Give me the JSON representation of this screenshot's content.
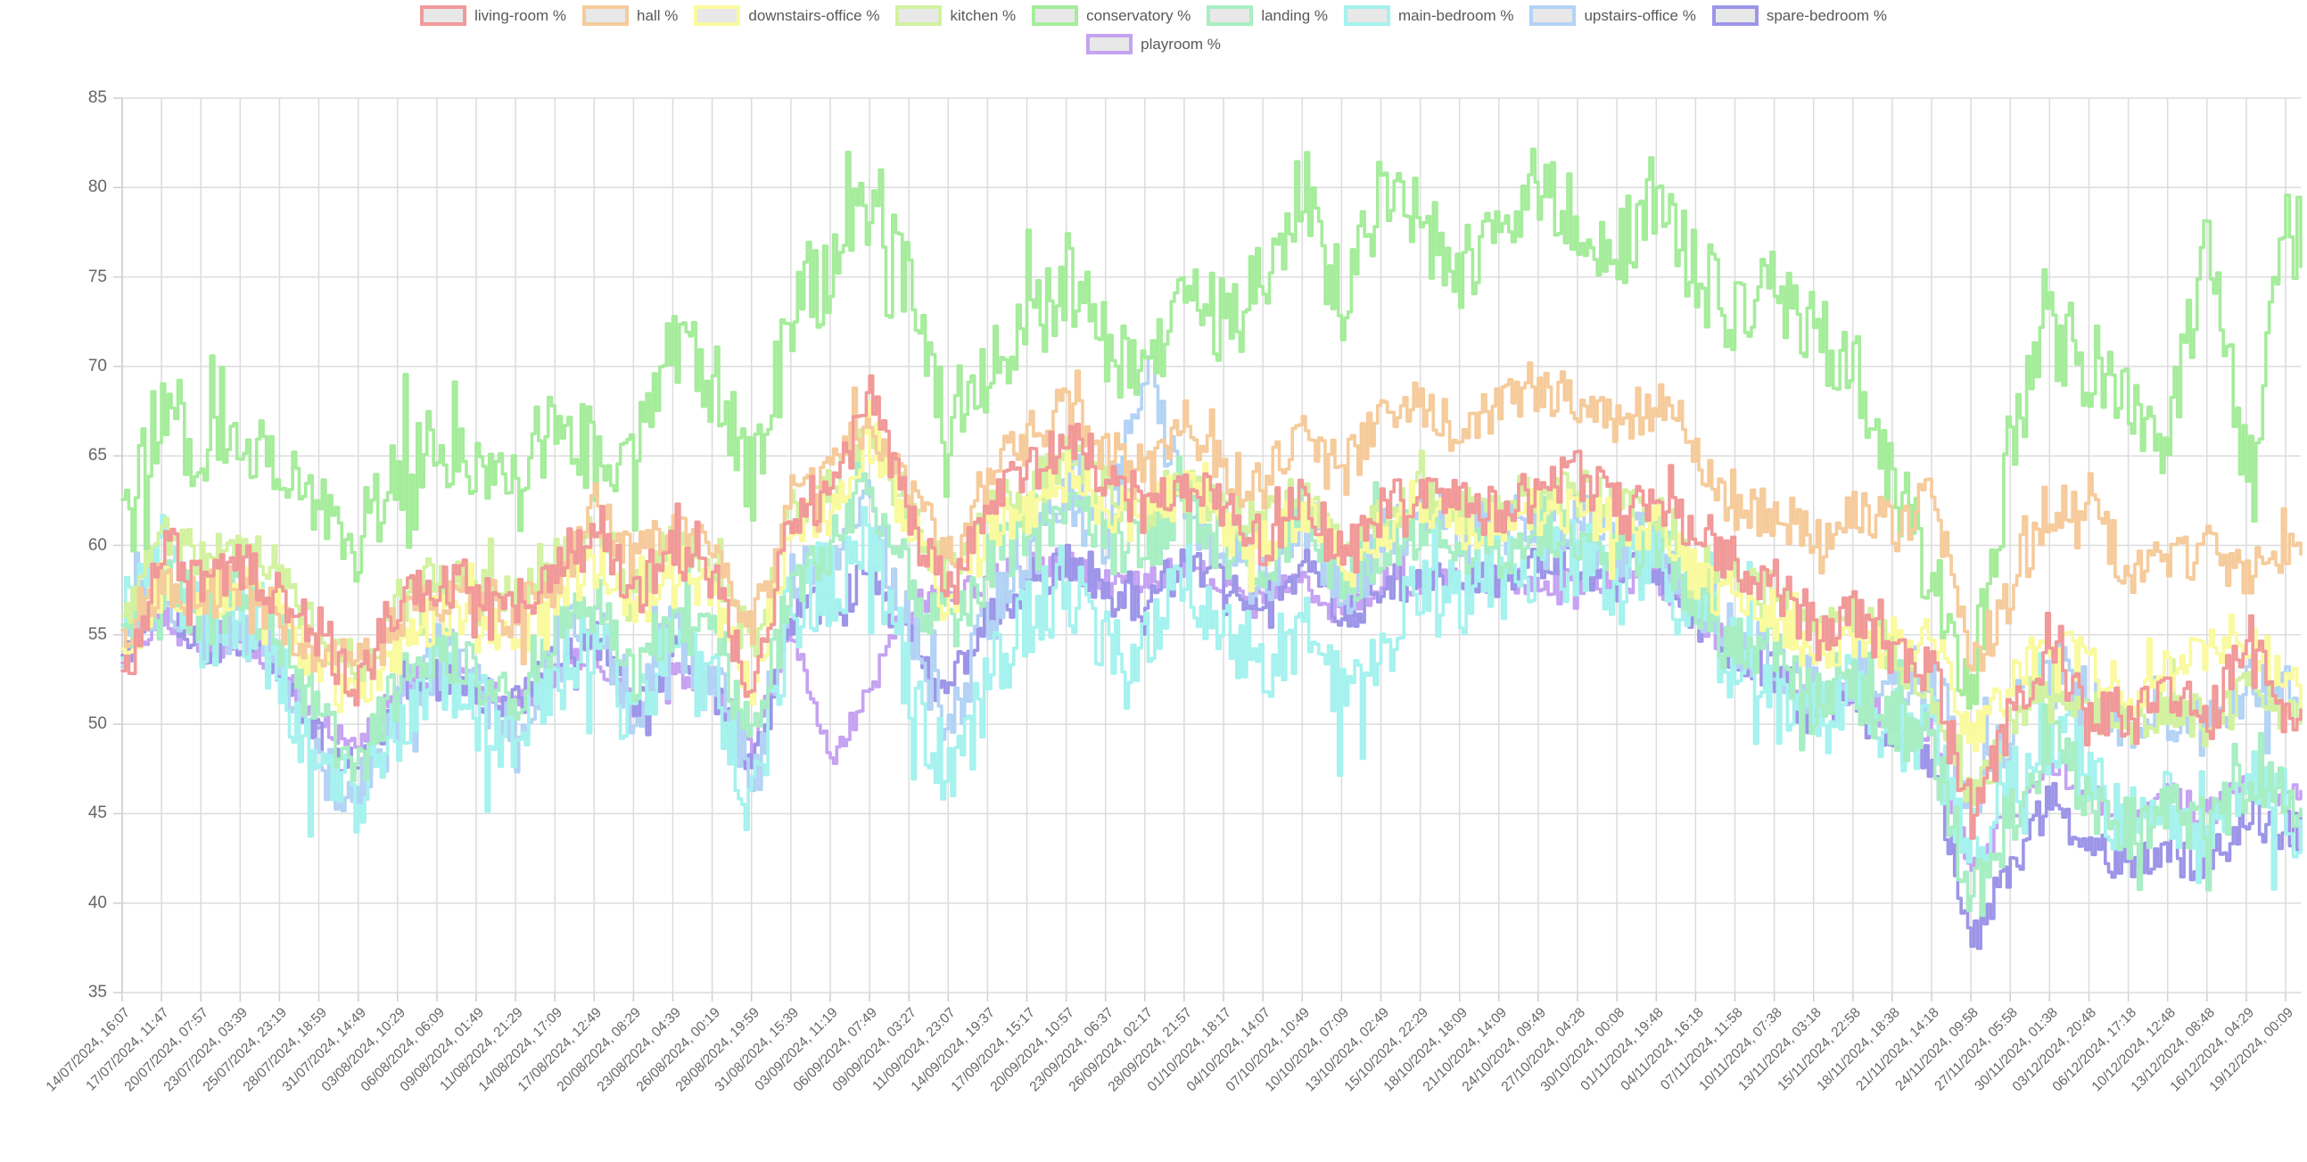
{
  "chart_data": {
    "type": "line",
    "title": "",
    "xlabel": "",
    "ylabel": "",
    "legend_position": "top",
    "grid": true,
    "grid_color": "#dcdcdc",
    "axis_color": "#cfcfcf",
    "tick_label_color": "#666666",
    "legend_text_color": "#595959",
    "legend_swatch_fill": "#e8e8e8",
    "y_min": 35,
    "y_max": 85,
    "y_ticks": [
      35,
      40,
      45,
      50,
      55,
      60,
      65,
      70,
      75,
      80,
      85
    ],
    "x_labels": [
      "14/07/2024, 16:07",
      "17/07/2024, 11:47",
      "20/07/2024, 07:57",
      "23/07/2024, 03:39",
      "25/07/2024, 23:19",
      "28/07/2024, 18:59",
      "31/07/2024, 14:49",
      "03/08/2024, 10:29",
      "06/08/2024, 06:09",
      "09/08/2024, 01:49",
      "11/08/2024, 21:29",
      "14/08/2024, 17:09",
      "17/08/2024, 12:49",
      "20/08/2024, 08:29",
      "23/08/2024, 04:39",
      "26/08/2024, 00:19",
      "28/08/2024, 19:59",
      "31/08/2024, 15:39",
      "03/09/2024, 11:19",
      "06/09/2024, 07:49",
      "09/09/2024, 03:27",
      "11/09/2024, 23:07",
      "14/09/2024, 19:37",
      "17/09/2024, 15:17",
      "20/09/2024, 10:57",
      "23/09/2024, 06:37",
      "26/09/2024, 02:17",
      "28/09/2024, 21:57",
      "01/10/2024, 18:17",
      "04/10/2024, 14:07",
      "07/10/2024, 10:49",
      "10/10/2024, 07:09",
      "13/10/2024, 02:49",
      "15/10/2024, 22:29",
      "18/10/2024, 18:09",
      "21/10/2024, 14:09",
      "24/10/2024, 09:49",
      "27/10/2024, 04:28",
      "30/10/2024, 00:08",
      "01/11/2024, 19:48",
      "04/11/2024, 16:18",
      "07/11/2024, 11:58",
      "10/11/2024, 07:38",
      "13/11/2024, 03:18",
      "15/11/2024, 22:58",
      "18/11/2024, 18:38",
      "21/11/2024, 14:18",
      "24/11/2024, 09:58",
      "27/11/2024, 05:58",
      "30/11/2024, 01:38",
      "03/12/2024, 20:48",
      "06/12/2024, 17:18",
      "10/12/2024, 12:48",
      "13/12/2024, 08:48",
      "16/12/2024, 04:29",
      "19/12/2024, 00:09"
    ],
    "series": [
      {
        "name": "living-room %",
        "color": "#f19999",
        "jitter": 1.5,
        "values": [
          52,
          60,
          58,
          59,
          57,
          55,
          52,
          57,
          58,
          58,
          56,
          59,
          61,
          57,
          60,
          58,
          52,
          62,
          63,
          68,
          62,
          57,
          62,
          64,
          66,
          64,
          62,
          63,
          62,
          60,
          63,
          59,
          62,
          63,
          62,
          62,
          63,
          64,
          62,
          63,
          60,
          59,
          58,
          55,
          56,
          54,
          53,
          45,
          50,
          54,
          50,
          51,
          52,
          50,
          55,
          50
        ]
      },
      {
        "name": "hall %",
        "color": "#f6cb9b",
        "jitter": 1.5,
        "values": [
          55,
          58,
          57,
          58,
          56,
          54,
          53,
          56,
          57,
          57,
          56,
          58,
          62,
          59,
          61,
          60,
          55,
          63,
          64,
          67,
          63,
          59,
          64,
          66,
          68,
          65,
          64,
          66,
          64,
          63,
          67,
          64,
          67,
          68,
          66,
          68,
          69,
          68,
          67,
          68,
          65,
          62,
          62,
          60,
          62,
          61,
          63,
          53,
          57,
          62,
          63,
          58,
          59,
          60,
          58,
          60
        ]
      },
      {
        "name": "downstairs-office %",
        "color": "#fafa9e",
        "jitter": 1.4,
        "values": [
          54,
          58,
          57,
          58,
          56,
          53,
          51,
          55,
          56,
          56,
          55,
          57,
          59,
          56,
          59,
          57,
          52,
          61,
          62,
          66,
          61,
          57,
          61,
          62,
          64,
          62,
          62,
          63,
          61,
          60,
          62,
          59,
          61,
          62,
          61,
          61,
          62,
          62,
          61,
          61,
          58,
          57,
          56,
          54,
          55,
          54,
          55,
          49,
          52,
          55,
          53,
          52,
          53,
          54,
          55,
          52
        ]
      },
      {
        "name": "kitchen %",
        "color": "#d2f2a0",
        "jitter": 1.4,
        "values": [
          56,
          61,
          59,
          60,
          58,
          55,
          53,
          57,
          58,
          58,
          57,
          59,
          61,
          58,
          60,
          59,
          54,
          62,
          63,
          66,
          62,
          58,
          62,
          63,
          65,
          63,
          62,
          63,
          62,
          61,
          63,
          60,
          62,
          63,
          62,
          62,
          63,
          63,
          62,
          62,
          59,
          58,
          57,
          55,
          56,
          54,
          52,
          46,
          50,
          53,
          51,
          50,
          51,
          50,
          52,
          51
        ]
      },
      {
        "name": "conservatory %",
        "color": "#a5ec9b",
        "jitter": 2.6,
        "values": [
          62,
          68,
          65,
          66,
          64,
          62,
          60,
          64,
          66,
          64,
          63,
          68,
          65,
          66,
          71,
          69,
          63,
          73,
          75,
          80,
          74,
          67,
          70,
          72,
          75,
          71,
          69,
          76,
          72,
          75,
          80,
          73,
          80,
          78,
          75,
          79,
          80,
          78,
          76,
          80,
          75,
          73,
          74,
          72,
          70,
          64,
          58,
          52,
          66,
          72,
          70,
          68,
          66,
          78,
          64,
          77
        ]
      },
      {
        "name": "landing %",
        "color": "#a7eec3",
        "jitter": 1.8,
        "values": [
          55,
          58,
          56,
          57,
          55,
          50,
          48,
          52,
          54,
          53,
          52,
          55,
          57,
          53,
          56,
          55,
          49,
          58,
          60,
          63,
          58,
          55,
          59,
          61,
          62,
          60,
          60,
          62,
          60,
          59,
          61,
          58,
          60,
          61,
          60,
          60,
          61,
          61,
          60,
          60,
          57,
          55,
          54,
          51,
          52,
          50,
          49,
          40,
          45,
          49,
          46,
          44,
          45,
          44,
          47,
          46
        ]
      },
      {
        "name": "main-bedroom %",
        "color": "#a5f2ee",
        "jitter": 2.5,
        "values": [
          56,
          60,
          55,
          56,
          53,
          47,
          46,
          50,
          53,
          51,
          49,
          53,
          55,
          50,
          54,
          52,
          45,
          57,
          58,
          60,
          52,
          47,
          52,
          56,
          58,
          54,
          55,
          58,
          55,
          53,
          56,
          51,
          55,
          57,
          57,
          58,
          59,
          59,
          58,
          59,
          56,
          54,
          53,
          50,
          52,
          50,
          49,
          43,
          46,
          50,
          47,
          44,
          45,
          43,
          47,
          45
        ]
      },
      {
        "name": "upstairs-office %",
        "color": "#b3d3f5",
        "jitter": 2.0,
        "values": [
          55,
          58,
          55,
          56,
          53,
          48,
          46,
          51,
          54,
          52,
          50,
          54,
          56,
          51,
          55,
          53,
          46,
          58,
          59,
          62,
          55,
          50,
          56,
          60,
          63,
          60,
          70,
          62,
          60,
          58,
          62,
          57,
          60,
          62,
          61,
          61,
          62,
          61,
          60,
          60,
          57,
          55,
          54,
          52,
          53,
          52,
          53,
          46,
          50,
          53,
          51,
          50,
          51,
          50,
          52,
          52
        ]
      },
      {
        "name": "spare-bedroom %",
        "color": "#9d95e8",
        "jitter": 1.2,
        "values": [
          54,
          57,
          54,
          55,
          53,
          49,
          47,
          51,
          53,
          52,
          51,
          54,
          55,
          51,
          54,
          52,
          47,
          56,
          57,
          58,
          55,
          52,
          56,
          58,
          59,
          57,
          57,
          59,
          58,
          57,
          59,
          56,
          58,
          58,
          58,
          58,
          59,
          59,
          58,
          59,
          56,
          54,
          53,
          50,
          51,
          49,
          48,
          38,
          42,
          46,
          43,
          42,
          43,
          42,
          45,
          44
        ]
      },
      {
        "name": "playroom %",
        "color": "#c6a2f2",
        "jitter": 0.8,
        "values": [
          54,
          56,
          54,
          55,
          53,
          50,
          49,
          52,
          53,
          52,
          51,
          53,
          54,
          51,
          53,
          52,
          49,
          55,
          48,
          52,
          57,
          57,
          58,
          59,
          59,
          58,
          58,
          59,
          58,
          57,
          58,
          56,
          58,
          58,
          58,
          58,
          58,
          58,
          58,
          58,
          56,
          54,
          53,
          51,
          52,
          50,
          49,
          42,
          45,
          48,
          46,
          45,
          46,
          45,
          47,
          46
        ]
      }
    ]
  }
}
